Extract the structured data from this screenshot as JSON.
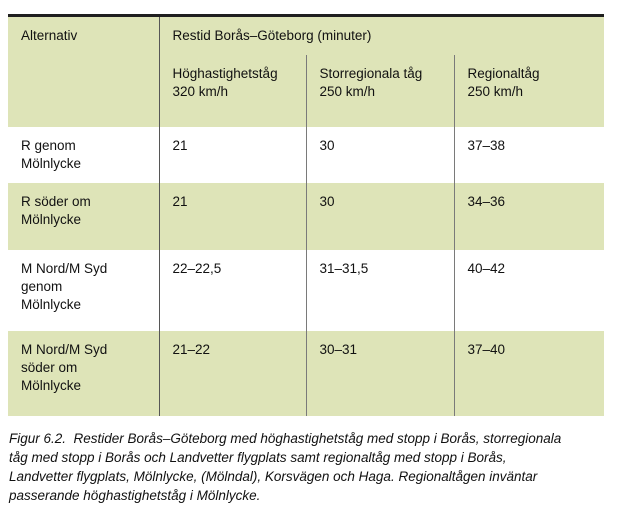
{
  "table": {
    "header": {
      "alternative_label": "Alternativ",
      "group_label": "Restid Borås–Göteborg (minuter)",
      "subheaders": [
        "Höghastighetståg\n320 km/h",
        "Storregionala tåg\n250 km/h",
        "Regionaltåg\n250 km/h"
      ]
    },
    "rows": [
      {
        "label": "R genom\nMölnlycke",
        "values": [
          "21",
          "30",
          "37–38"
        ]
      },
      {
        "label": "R söder om\nMölnlycke",
        "values": [
          "21",
          "30",
          "34–36"
        ]
      },
      {
        "label": "M Nord/M Syd\ngenom\nMölnlycke",
        "values": [
          "22–22,5",
          "31–31,5",
          "40–42"
        ]
      },
      {
        "label": "M Nord/M Syd\nsöder om\nMölnlycke",
        "values": [
          "21–22",
          "30–31",
          "37–40"
        ]
      }
    ]
  },
  "caption": {
    "text": "Figur 6.2.  Restider Borås–Göteborg med höghastighetståg med stopp i Borås, storregionala\ntåg med stopp i Borås och Landvetter flygplats samt regionaltåg med stopp i Borås,\nLandvetter flygplats, Mölnlycke, (Mölndal), Korsvägen och Haga. Regionaltågen inväntar\npasserande höghastighetståg i Mölnlycke."
  },
  "colors": {
    "row_highlight": "#dee4b8",
    "top_rule": "#1f1f1f",
    "divider": "#7a7a7a"
  }
}
